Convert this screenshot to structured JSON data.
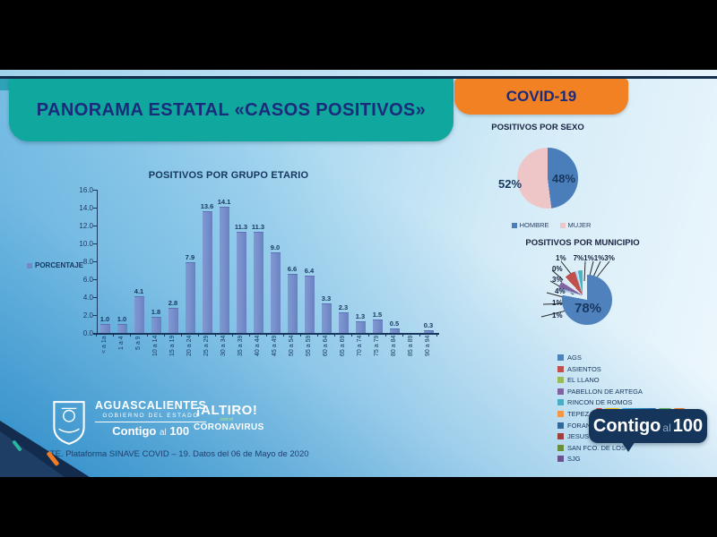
{
  "colors": {
    "teal_banner": "#0FA79E",
    "orange_banner": "#F28123",
    "banner_text": "#1B2B7B",
    "chart_text": "#17375E",
    "bar_fill": "#7289C8",
    "top_line": "#142F4E",
    "badge_navy": "#16355A",
    "corner_navy": "#132C4E",
    "accent_teal": "#2BB3A3",
    "accent_orange": "#F07D26"
  },
  "header": {
    "title": "PANORAMA ESTATAL «CASOS POSITIVOS»",
    "covid_label": "COVID-19"
  },
  "footer": {
    "source": "FUENTE. Plataforma SINAVE COVID – 19. Datos del 06 de Mayo de 2020"
  },
  "logos": {
    "gov": {
      "name": "AGUASCALIENTES",
      "subtitle": "GOBIERNO DEL ESTADO",
      "slogan_bold": "Contigo",
      "slogan_mid": "al",
      "slogan_num": "100"
    },
    "altiro": {
      "top": "¡ALTIRO!",
      "mid": "con el",
      "bottom": "CORONAVIRUS"
    },
    "badge": {
      "word": "Contigo",
      "mid": "al",
      "num": "100"
    }
  },
  "chart_data": [
    {
      "type": "bar",
      "title": "POSITIVOS POR GRUPO ETARIO",
      "series_label": "PORCENTAJE",
      "xlabel": "",
      "ylabel": "",
      "ylim": [
        0,
        16
      ],
      "grid": false,
      "y_ticks": [
        "16.0",
        "14.0",
        "12.0",
        "10.0",
        "8.0",
        "6.0",
        "4.0",
        "2.0",
        "0.0"
      ],
      "categories": [
        "< a 1a",
        "1 a 4",
        "5 a 9",
        "10 a 14",
        "15 a 19",
        "20 a 24",
        "25 a 29",
        "30 a 34",
        "35 a 39",
        "40 a 44",
        "45 a 49",
        "50 a 54",
        "55 a 59",
        "60 a 64",
        "65 a 69",
        "70 a 74",
        "75 a 79",
        "80 a 84",
        "85 a 89",
        "90 a 94"
      ],
      "values": [
        1.0,
        1.0,
        4.1,
        1.8,
        2.8,
        7.9,
        13.6,
        14.1,
        11.3,
        11.3,
        9.0,
        6.6,
        6.4,
        3.3,
        2.3,
        1.3,
        1.5,
        0.5,
        0.0,
        0.3
      ],
      "value_labels": [
        "1.0",
        "1.0",
        "4.1",
        "1.8",
        "2.8",
        "7.9",
        "13.6",
        "14.1",
        "11.3",
        "11.3",
        "9.0",
        "6.6",
        "6.4",
        "3.3",
        "2.3",
        "1.3",
        "1.5",
        "0.5",
        "",
        "0.3"
      ]
    },
    {
      "type": "pie",
      "title": "POSITIVOS POR SEXO",
      "legend_position": "bottom",
      "slices": [
        {
          "name": "HOMBRE",
          "pct": 48,
          "label": "48%",
          "color": "#4A7EBB"
        },
        {
          "name": "MUJER",
          "pct": 52,
          "label": "52%",
          "color": "#EEC6C8"
        }
      ]
    },
    {
      "type": "pie",
      "title": "POSITIVOS POR MUNICIPIO",
      "center_label": "78%",
      "segments": [
        {
          "pct": 78,
          "color": "#4F81BD"
        },
        {
          "pct": 1,
          "color": "#B9CDE5"
        },
        {
          "pct": 1,
          "color": "#9BBFE0"
        },
        {
          "pct": 4,
          "color": "#8064A2"
        },
        {
          "pct": 3,
          "color": "#DCE9F5"
        },
        {
          "pct": 0,
          "color": "#FFFFFF"
        },
        {
          "pct": 1,
          "color": "#E8EEF7"
        },
        {
          "pct": 7,
          "color": "#C0504D"
        },
        {
          "pct": 1,
          "color": "#AACBE8"
        },
        {
          "pct": 1,
          "color": "#D2E4F3"
        },
        {
          "pct": 3,
          "color": "#45B6C8"
        }
      ],
      "callouts_top": [
        "1%",
        "7%",
        "1%",
        "1%",
        "3%"
      ],
      "callouts_left": [
        "0%",
        "3%",
        "4%",
        "1%",
        "1%"
      ],
      "legend": [
        {
          "label": "AGS",
          "color": "#4F81BD"
        },
        {
          "label": "ASIENTOS",
          "color": "#C0504D"
        },
        {
          "label": "EL LLANO",
          "color": "#9BBB59"
        },
        {
          "label": "PABELLON DE ARTEGA",
          "color": "#8064A2"
        },
        {
          "label": "RINCON DE ROMOS",
          "color": "#4BACC6"
        },
        {
          "label": "TEPEZALA",
          "color": "#F79646"
        },
        {
          "label": "FORANEOS",
          "color": "#31699B"
        },
        {
          "label": "JESUS MARIA",
          "color": "#9E413E"
        },
        {
          "label": "SAN FCO. DE LOS",
          "color": "#6A8F3C"
        },
        {
          "label": "SJG",
          "color": "#6A5291"
        }
      ]
    }
  ]
}
